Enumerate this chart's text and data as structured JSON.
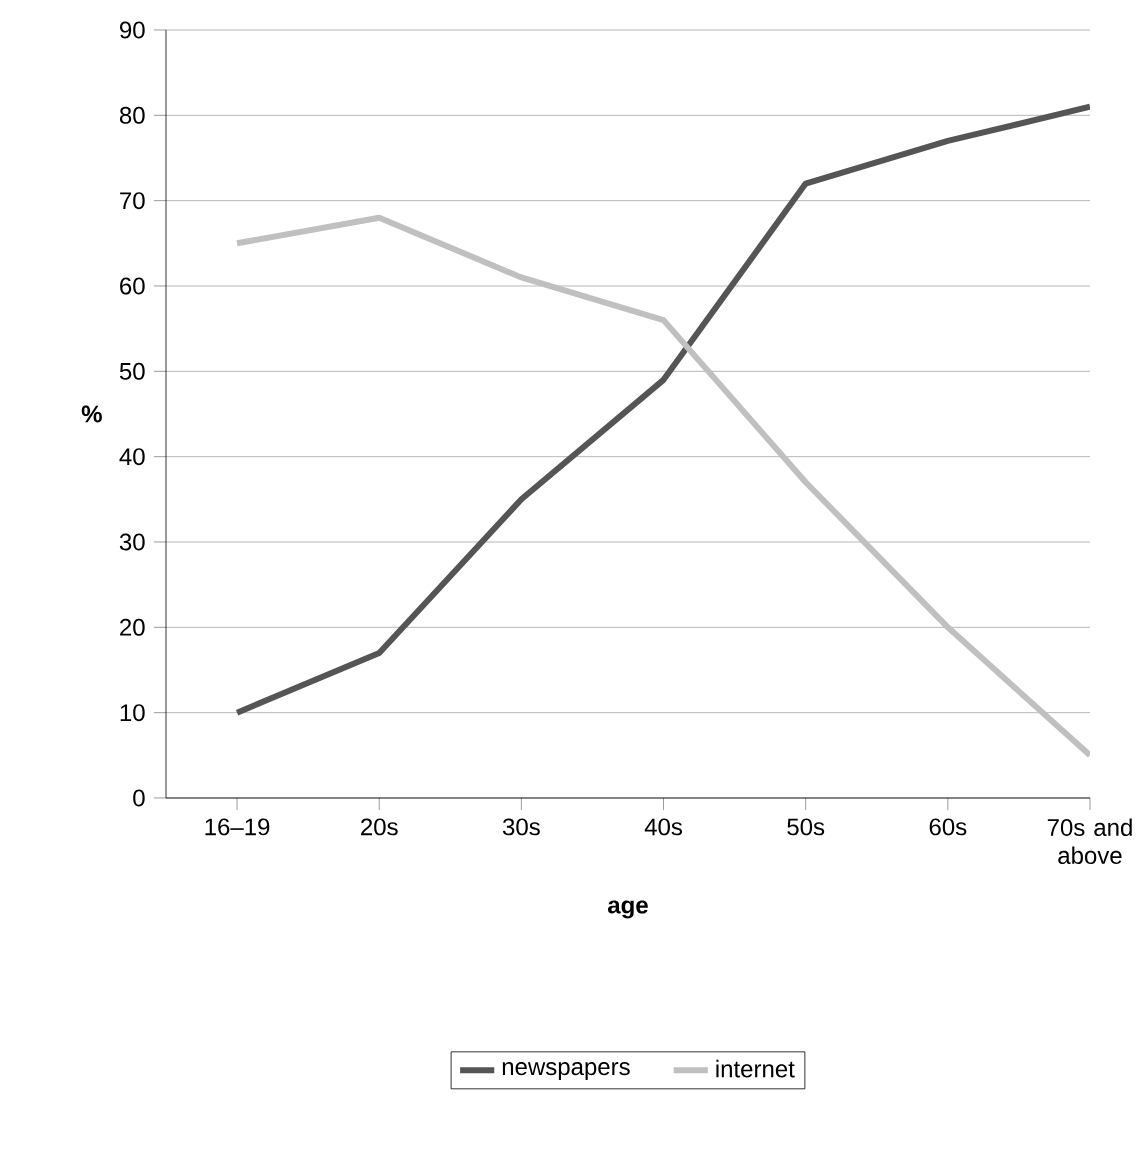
{
  "chart_data": {
    "type": "line",
    "xlabel": "age",
    "ylabel": "%",
    "categories": [
      "16–19",
      "20s",
      "30s",
      "40s",
      "50s",
      "60s",
      "70s and above"
    ],
    "series": [
      {
        "name": "newspapers",
        "color": "#555555",
        "values": [
          10,
          17,
          35,
          49,
          72,
          77,
          81
        ]
      },
      {
        "name": "internet",
        "color": "#c0c0c0",
        "values": [
          65,
          68,
          61,
          56,
          37,
          20,
          5
        ]
      }
    ],
    "ylim": [
      0,
      90
    ],
    "yticks": [
      0,
      10,
      20,
      30,
      40,
      50,
      60,
      70,
      80,
      90
    ],
    "grid": "y",
    "legend": "bottom",
    "marker": "none",
    "line_style": "solid"
  }
}
